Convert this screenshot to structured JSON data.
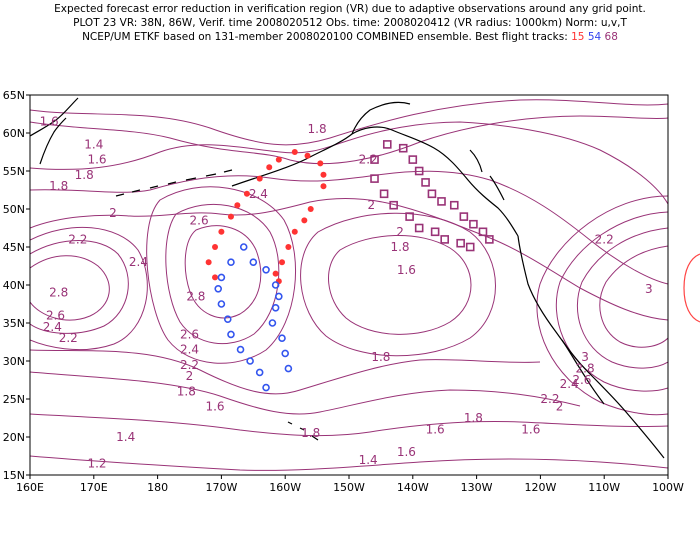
{
  "title": {
    "line1": "Expected forecast error reduction in verification region (VR) due to adaptive observations around any grid point.",
    "line2": "PLOT 23 VR: 38N, 86W, Verif. time 2008020512 Obs. time: 2008020412 (VR radius: 1000km) Norm: u,v,T",
    "line3_prefix": "NCEP/UM ETKF based on 131-member 2008020100 COMBINED ensemble.  Best flight tracks: ",
    "track_ids": [
      "15",
      "54",
      "68"
    ]
  },
  "colors": {
    "contour": "#993377",
    "track15": "#ff3333",
    "track54": "#3355ee",
    "track68": "#993377",
    "coast": "#000000",
    "vr_circle": "#ff4444"
  },
  "axes": {
    "lon_labels": [
      "160E",
      "170E",
      "180",
      "170W",
      "160W",
      "150W",
      "140W",
      "130W",
      "120W",
      "110W",
      "100W"
    ],
    "lat_labels": [
      "15N",
      "20N",
      "25N",
      "30N",
      "35N",
      "40N",
      "45N",
      "50N",
      "55N",
      "60N",
      "65N"
    ],
    "lon_range": [
      160,
      260
    ],
    "lat_range": [
      15,
      65
    ]
  },
  "contour_labels": [
    {
      "text": "1.6",
      "lon": 163,
      "lat": 61.5
    },
    {
      "text": "1.4",
      "lon": 170,
      "lat": 58.5
    },
    {
      "text": "1.6",
      "lon": 170.5,
      "lat": 56.5
    },
    {
      "text": "1.8",
      "lon": 168.5,
      "lat": 54.5
    },
    {
      "text": "1.8",
      "lon": 164.5,
      "lat": 53.0
    },
    {
      "text": "2.4",
      "lon": 195.8,
      "lat": 52.0
    },
    {
      "text": "2",
      "lon": 173,
      "lat": 49.5
    },
    {
      "text": "2.6",
      "lon": 186.5,
      "lat": 48.5
    },
    {
      "text": "2.2",
      "lon": 167.5,
      "lat": 46.0
    },
    {
      "text": "2.4",
      "lon": 177,
      "lat": 43.0
    },
    {
      "text": "2.8",
      "lon": 164.5,
      "lat": 39.0
    },
    {
      "text": "2.6",
      "lon": 164,
      "lat": 36.0
    },
    {
      "text": "2.4",
      "lon": 163.5,
      "lat": 34.5
    },
    {
      "text": "2.2",
      "lon": 166,
      "lat": 33.0
    },
    {
      "text": "2.8",
      "lon": 186,
      "lat": 38.5
    },
    {
      "text": "2.6",
      "lon": 185,
      "lat": 33.5
    },
    {
      "text": "2.4",
      "lon": 185,
      "lat": 31.5
    },
    {
      "text": "2.2",
      "lon": 185,
      "lat": 29.5
    },
    {
      "text": "2",
      "lon": 185,
      "lat": 28.0
    },
    {
      "text": "1.8",
      "lon": 184.5,
      "lat": 26.0
    },
    {
      "text": "1.6",
      "lon": 189,
      "lat": 24.0
    },
    {
      "text": "1.4",
      "lon": 175,
      "lat": 20.0
    },
    {
      "text": "1.2",
      "lon": 170.5,
      "lat": 16.5
    },
    {
      "text": "1.8",
      "lon": 205,
      "lat": 60.5
    },
    {
      "text": "2.2",
      "lon": 213,
      "lat": 56.5
    },
    {
      "text": "2",
      "lon": 213.5,
      "lat": 50.5
    },
    {
      "text": "2",
      "lon": 218,
      "lat": 47.0
    },
    {
      "text": "1.8",
      "lon": 218,
      "lat": 45.0
    },
    {
      "text": "1.6",
      "lon": 219,
      "lat": 42.0
    },
    {
      "text": "2.2",
      "lon": 250,
      "lat": 46.0
    },
    {
      "text": "1.8",
      "lon": 215,
      "lat": 30.5
    },
    {
      "text": "3",
      "lon": 257,
      "lat": 39.5
    },
    {
      "text": "3",
      "lon": 247,
      "lat": 30.5
    },
    {
      "text": "2.8",
      "lon": 247,
      "lat": 29.0
    },
    {
      "text": "2.6",
      "lon": 246.5,
      "lat": 27.5
    },
    {
      "text": "2.4",
      "lon": 244.5,
      "lat": 27.0
    },
    {
      "text": "2.2",
      "lon": 241.5,
      "lat": 25.0
    },
    {
      "text": "2",
      "lon": 243,
      "lat": 24.0
    },
    {
      "text": "1.8",
      "lon": 229.5,
      "lat": 22.5
    },
    {
      "text": "1.6",
      "lon": 223.5,
      "lat": 21.0
    },
    {
      "text": "1.6",
      "lon": 219,
      "lat": 18.0
    },
    {
      "text": "1.4",
      "lon": 213,
      "lat": 17.0
    },
    {
      "text": "1.6",
      "lon": 238.5,
      "lat": 21.0
    },
    {
      "text": "1.8",
      "lon": 204,
      "lat": 20.5
    }
  ],
  "flight_tracks": [
    {
      "id": "15",
      "marker": "dot",
      "points": [
        [
          205.5,
          56.0
        ],
        [
          203.5,
          57.0
        ],
        [
          201.5,
          57.5
        ],
        [
          199.0,
          56.5
        ],
        [
          197.5,
          55.5
        ],
        [
          196.0,
          54.0
        ],
        [
          194.0,
          52.0
        ],
        [
          192.5,
          50.5
        ],
        [
          191.5,
          49.0
        ],
        [
          190.0,
          47.0
        ],
        [
          189.0,
          45.0
        ],
        [
          188.0,
          43.0
        ],
        [
          189.0,
          41.0
        ],
        [
          206.0,
          53.0
        ],
        [
          206.0,
          54.5
        ],
        [
          204.0,
          50.0
        ],
        [
          203.0,
          48.5
        ],
        [
          201.5,
          47.0
        ],
        [
          200.5,
          45.0
        ],
        [
          199.5,
          43.0
        ],
        [
          198.5,
          41.5
        ],
        [
          199.0,
          40.5
        ]
      ]
    },
    {
      "id": "54",
      "marker": "circle",
      "points": [
        [
          193.5,
          45.0
        ],
        [
          191.5,
          43.0
        ],
        [
          190.0,
          41.0
        ],
        [
          189.5,
          39.5
        ],
        [
          190.0,
          37.5
        ],
        [
          191.0,
          35.5
        ],
        [
          191.5,
          33.5
        ],
        [
          193.0,
          31.5
        ],
        [
          194.5,
          30.0
        ],
        [
          196.0,
          28.5
        ],
        [
          197.0,
          26.5
        ],
        [
          195.0,
          43.0
        ],
        [
          197.0,
          42.0
        ],
        [
          198.5,
          40.0
        ],
        [
          199.0,
          38.5
        ],
        [
          198.5,
          37.0
        ],
        [
          198.0,
          35.0
        ],
        [
          199.5,
          33.0
        ],
        [
          200.0,
          31.0
        ],
        [
          200.5,
          29.0
        ]
      ]
    },
    {
      "id": "68",
      "marker": "square",
      "points": [
        [
          214.0,
          56.5
        ],
        [
          216.0,
          58.5
        ],
        [
          218.5,
          58.0
        ],
        [
          220.0,
          56.5
        ],
        [
          221.0,
          55.0
        ],
        [
          222.0,
          53.5
        ],
        [
          223.0,
          52.0
        ],
        [
          224.5,
          51.0
        ],
        [
          226.5,
          50.5
        ],
        [
          228.0,
          49.0
        ],
        [
          229.5,
          48.0
        ],
        [
          231.0,
          47.0
        ],
        [
          232.0,
          46.0
        ],
        [
          214.0,
          54.0
        ],
        [
          215.5,
          52.0
        ],
        [
          217.0,
          50.5
        ],
        [
          219.5,
          49.0
        ],
        [
          221.0,
          47.5
        ],
        [
          223.5,
          47.0
        ],
        [
          225.0,
          46.0
        ],
        [
          227.5,
          45.5
        ],
        [
          229.0,
          45.0
        ]
      ]
    }
  ]
}
